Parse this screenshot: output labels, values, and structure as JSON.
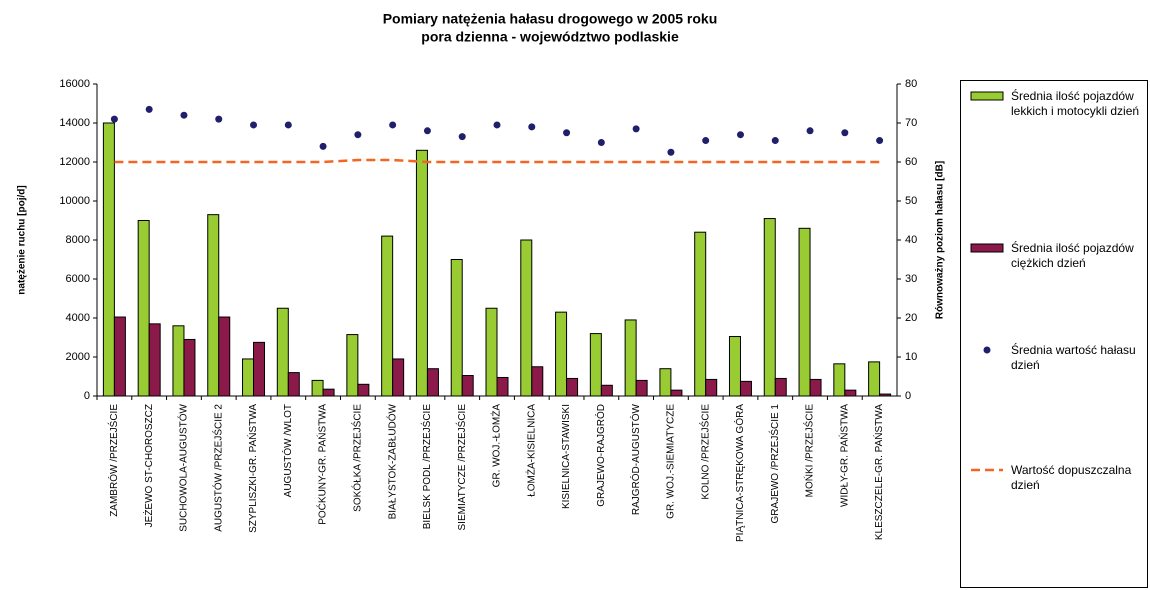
{
  "chart_data": {
    "type": "bar",
    "title": "Pomiary natężenia hałasu drogowego w 2005 roku",
    "subtitle": "pora dzienna - województwo podlaskie",
    "y_label": "natężenie ruchu [poj/d]",
    "y2_label": "Równoważny poziom hałasu [dB]",
    "categories": [
      "ZAMBRÓW /PRZEJŚCIE",
      "JEŻEWO ST-CHOROSZCZ",
      "SUCHOWOLA-AUGUSTÓW",
      "AUGUSTÓW /PRZEJŚCIE 2",
      "SZYPLISZKI-GR. PAŃSTWA",
      "AUGUSTÓW /WLOT",
      "POĆKUNY-GR. PAŃSTWA",
      "SOKÓŁKA /PRZEJŚCIE",
      "BIAŁYSTOK-ZABŁUDÓW",
      "BIELSK PODL /PRZEJŚCIE",
      "SIEMIATYCZE /PRZEJŚCIE",
      "GR. WOJ.-ŁOMŻA",
      "ŁOMŻA-KISIELNICA",
      "KISIELNICA-STAWISKI",
      "GRAJEWO-RAJGRÓD",
      "RAJGRÓD-AUGUSTÓW",
      "GR. WOJ.-SIEMIATYCZE",
      "KOLNO /PRZEJŚCIE",
      "PIĄTNICA-STRĘKOWA GÓRA",
      "GRAJEWO /PRZEJŚCIE 1",
      "MOŃKI /PRZEJŚCIE",
      "WIDŁY-GR. PAŃSTWA",
      "KLESZCZELE-GR. PAŃSTWA"
    ],
    "series": [
      {
        "name": "Średnia ilość pojazdów lekkich i motocykli dzień",
        "type": "bar",
        "color": "#99cc33",
        "values": [
          14000,
          9000,
          3600,
          9300,
          1900,
          4500,
          800,
          3150,
          8200,
          12600,
          7000,
          4500,
          8000,
          4300,
          3200,
          3900,
          1400,
          8400,
          3050,
          9100,
          8600,
          1650,
          1750
        ]
      },
      {
        "name": "Średnia ilość pojazdów ciężkich dzień",
        "type": "bar",
        "color": "#8b1a4a",
        "values": [
          4050,
          3700,
          2900,
          4050,
          2750,
          1200,
          350,
          600,
          1900,
          1400,
          1050,
          950,
          1500,
          900,
          550,
          800,
          300,
          850,
          750,
          900,
          850,
          300,
          100
        ]
      },
      {
        "name": "Średnia wartość hałasu dzień",
        "type": "scatter",
        "axis": "y2",
        "color": "#1f1f6b",
        "values": [
          71,
          73.5,
          72,
          71,
          69.5,
          69.5,
          64,
          67,
          69.5,
          68,
          66.5,
          69.5,
          69,
          67.5,
          65,
          68.5,
          62.5,
          65.5,
          67,
          65.5,
          68,
          67.5,
          65.5
        ]
      },
      {
        "name": "Wartość dopuszczalna dzień",
        "type": "line",
        "axis": "y2",
        "color": "#f26522",
        "values": [
          60,
          60,
          60,
          60,
          60,
          60,
          60,
          60.5,
          60.5,
          60,
          60,
          60,
          60,
          60,
          60,
          60,
          60,
          60,
          60,
          60,
          60,
          60,
          60
        ]
      }
    ],
    "ylim": [
      0,
      16000
    ],
    "yticks": [
      0,
      2000,
      4000,
      6000,
      8000,
      10000,
      12000,
      14000,
      16000
    ],
    "y2lim": [
      0,
      80
    ],
    "y2ticks": [
      0,
      10,
      20,
      30,
      40,
      50,
      60,
      70,
      80
    ],
    "grid": false,
    "legend": "right"
  }
}
